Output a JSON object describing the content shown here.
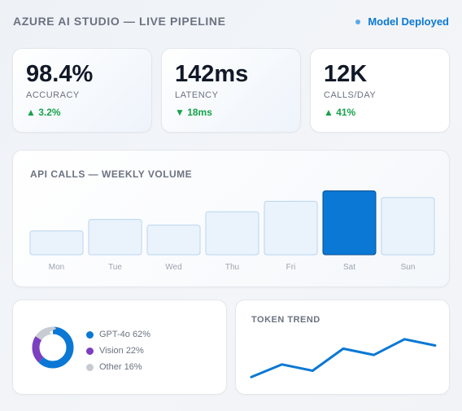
{
  "header": {
    "title": "AZURE AI STUDIO — LIVE PIPELINE",
    "status": "Model Deployed"
  },
  "kpis": [
    {
      "value": "98.4%",
      "label": "ACCURACY",
      "delta": "▲ 3.2%"
    },
    {
      "value": "142ms",
      "label": "LATENCY",
      "delta": "▼ 18ms"
    },
    {
      "value": "12K",
      "label": "CALLS/DAY",
      "delta": "▲ 41%"
    }
  ],
  "colors": {
    "accent": "#0a78d4",
    "positive": "#17a34a",
    "bar_fill": "#eaf3fc",
    "bar_stroke": "#b9d4ee",
    "bar_active": "#0a78d4",
    "gpt": "#0a78d4",
    "vision": "#7b3fbf",
    "other": "#c8ccd2"
  },
  "chart_data": [
    {
      "type": "bar",
      "title": "API CALLS — WEEKLY VOLUME",
      "categories": [
        "Mon",
        "Tue",
        "Wed",
        "Thu",
        "Fri",
        "Sat",
        "Sun"
      ],
      "values": [
        25,
        37,
        31,
        45,
        56,
        67,
        60
      ],
      "highlight_index": 5,
      "ylim": [
        0,
        70
      ]
    },
    {
      "type": "pie",
      "donut": true,
      "slices": [
        {
          "label": "GPT-4o 62%",
          "value": 62
        },
        {
          "label": "Vision 22%",
          "value": 22
        },
        {
          "label": "Other 16%",
          "value": 16
        }
      ]
    },
    {
      "type": "line",
      "title": "TOKEN TREND",
      "x": [
        1,
        2,
        3,
        4,
        5,
        6,
        7
      ],
      "values": [
        10,
        30,
        20,
        55,
        45,
        70,
        60
      ],
      "ylim": [
        0,
        80
      ]
    }
  ]
}
